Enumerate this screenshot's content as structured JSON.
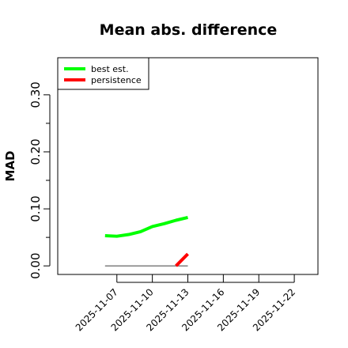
{
  "chart_data": {
    "type": "line",
    "title": "Mean abs. difference",
    "xlabel": "",
    "ylabel": "MAD",
    "ylim": [
      -0.015,
      0.365
    ],
    "xlim": [
      "2025-11-02",
      "2025-11-24"
    ],
    "y_ticks": [
      "0.00",
      "0.10",
      "0.20",
      "0.30"
    ],
    "y_tick_values": [
      0,
      0.1,
      0.2,
      0.3
    ],
    "y_minor_tick_values": [
      0.05,
      0.15,
      0.25
    ],
    "x_ticks": [
      "2025-11-07",
      "2025-11-10",
      "2025-11-13",
      "2025-11-16",
      "2025-11-19",
      "2025-11-22"
    ],
    "grid": false,
    "legend_position": "top-left",
    "series": [
      {
        "name": "best est.",
        "color": "#00ff00",
        "x": [
          "2025-11-06",
          "2025-11-07",
          "2025-11-08",
          "2025-11-09",
          "2025-11-10",
          "2025-11-11",
          "2025-11-12",
          "2025-11-13"
        ],
        "values": [
          0.053,
          0.052,
          0.055,
          0.06,
          0.069,
          0.074,
          0.08,
          0.085
        ]
      },
      {
        "name": "persistence",
        "color": "#ff0000",
        "x": [
          "2025-11-12",
          "2025-11-13"
        ],
        "values": [
          0.0,
          0.021
        ]
      }
    ],
    "reference_line": {
      "color": "#555555",
      "x": [
        "2025-11-06",
        "2025-11-13"
      ],
      "values": [
        0.0,
        0.0
      ]
    }
  }
}
